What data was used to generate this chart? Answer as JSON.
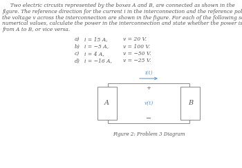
{
  "background_color": "#ffffff",
  "text_color": "#555555",
  "blue_color": "#6699cc",
  "para_lines": [
    "     Two electric circuits represented by the boxes A and B, are connected as shown in the",
    "figure. The reference direction for the current i in the interconnection and the reference polarity for",
    "the voltage v across the interconnection are shown in the figure. For each of the following sets of",
    "numerical values, calculate the power in the interconnection and state whether the power is flowing",
    "from A to B, or vice versa."
  ],
  "items": [
    [
      "a)",
      "i = 15 A,",
      "v = 20 V."
    ],
    [
      "b)",
      "i = −5 A,",
      "v = 100 V."
    ],
    [
      "c)",
      "i = 4 A,",
      "v = −50 V."
    ],
    [
      "d)",
      "i = −16 A,",
      "v = −25 V."
    ]
  ],
  "fig_caption": "Figure 2: Problem 3 Diagram",
  "label_A": "A",
  "label_B": "B",
  "label_vt": "v(t)",
  "label_it": "i(t)",
  "plus_sign": "+",
  "minus_sign": "−",
  "para_fontsize": 5.3,
  "item_fontsize": 5.5,
  "caption_fontsize": 5.0
}
